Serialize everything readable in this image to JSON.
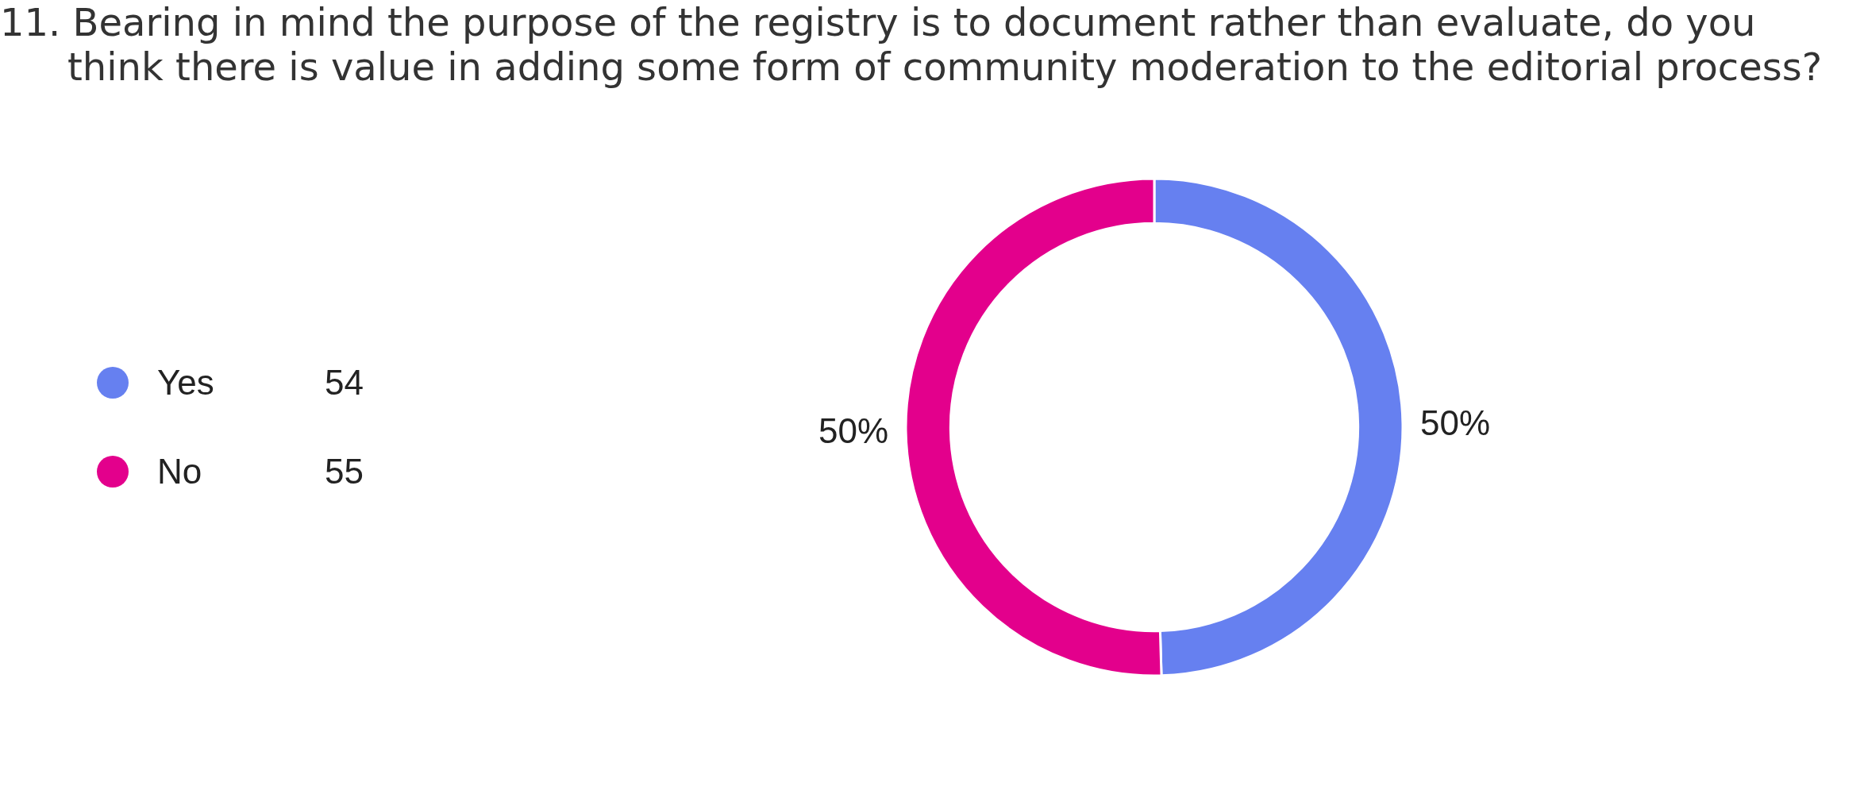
{
  "chart_data": {
    "type": "donut",
    "title": "11. Bearing in mind the purpose of the registry is to document rather than evaluate, do you\nthink there is value in adding some form of community moderation to the editorial process?",
    "categories": [
      "Yes",
      "No"
    ],
    "values": [
      54,
      55
    ],
    "colors": [
      "#6680f0",
      "#e3008c"
    ],
    "value_labels": [
      "54",
      "55"
    ],
    "annotations": [
      {
        "text": "50%",
        "x": "Yes"
      },
      {
        "text": "50%",
        "x": "No"
      }
    ],
    "legend": "left"
  }
}
